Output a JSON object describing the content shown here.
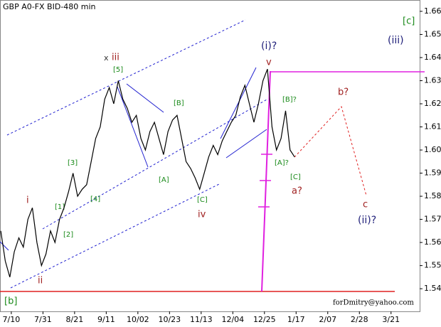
{
  "chart_data": {
    "type": "line",
    "title": "GBP A0-FX BID-480 min",
    "x": [
      -7,
      -4,
      -1,
      2,
      5,
      8,
      11,
      14,
      17,
      20,
      23,
      26,
      29,
      32,
      35,
      38,
      41,
      44,
      47,
      50,
      53,
      56,
      59,
      62,
      65,
      68,
      71,
      74,
      77,
      80,
      83,
      86,
      89,
      92,
      95,
      98,
      101,
      104,
      107,
      110,
      113,
      116,
      119,
      122,
      125,
      128,
      131,
      134,
      137,
      140,
      143,
      146,
      149,
      152,
      155,
      158,
      161,
      164,
      167,
      170,
      173,
      176,
      179,
      182,
      185,
      188
    ],
    "series": [
      {
        "color": "#000000",
        "values": [
          1.565,
          1.552,
          1.545,
          1.556,
          1.562,
          1.558,
          1.57,
          1.575,
          1.56,
          1.55,
          1.555,
          1.565,
          1.56,
          1.57,
          1.575,
          1.582,
          1.59,
          1.58,
          1.583,
          1.585,
          1.595,
          1.605,
          1.61,
          1.622,
          1.627,
          1.62,
          1.63,
          1.622,
          1.618,
          1.612,
          1.615,
          1.605,
          1.6,
          1.608,
          1.612,
          1.605,
          1.598,
          1.608,
          1.613,
          1.615,
          1.605,
          1.595,
          1.592,
          1.588,
          1.583,
          1.59,
          1.597,
          1.602,
          1.598,
          1.604,
          1.608,
          1.612,
          1.615,
          1.623,
          1.628,
          1.62,
          1.612,
          1.62,
          1.63,
          1.635,
          1.61,
          1.6,
          1.605,
          1.617,
          1.6,
          1.597
        ]
      }
    ],
    "xlim": [
      -7.5,
      271
    ],
    "ylim": [
      1.5302,
      1.6649
    ],
    "xticks": [
      {
        "value": 0,
        "label": "7/10"
      },
      {
        "value": 21,
        "label": "7/31"
      },
      {
        "value": 42,
        "label": "8/21"
      },
      {
        "value": 63,
        "label": "9/11"
      },
      {
        "value": 84,
        "label": "10/02"
      },
      {
        "value": 105,
        "label": "10/23"
      },
      {
        "value": 126,
        "label": "11/13"
      },
      {
        "value": 147,
        "label": "12/04"
      },
      {
        "value": 168,
        "label": "12/25"
      },
      {
        "value": 189,
        "label": "1/17"
      },
      {
        "value": 210,
        "label": "2/07"
      },
      {
        "value": 231,
        "label": "2/28"
      },
      {
        "value": 252,
        "label": "3/21"
      }
    ],
    "yticks": [
      1.54,
      1.55,
      1.56,
      1.57,
      1.58,
      1.59,
      {
        "value": 1.6,
        "label": "1.60"
      },
      1.61,
      1.62,
      1.63,
      1.64,
      1.65,
      1.66
    ],
    "annotations": [
      "x",
      "iii",
      "[5]",
      "[B]",
      "[A]",
      "[C]",
      "iv",
      "[3]",
      "[4]",
      "[1]",
      "[2]",
      "i",
      "ii",
      "(i)?",
      "v",
      "[B]?",
      "[A]?",
      "[C]",
      "a?",
      "b?",
      "c",
      "(ii)?",
      "[c]",
      "(iii)",
      "[b]",
      "forDmitry@yahoo.com"
    ]
  }
}
